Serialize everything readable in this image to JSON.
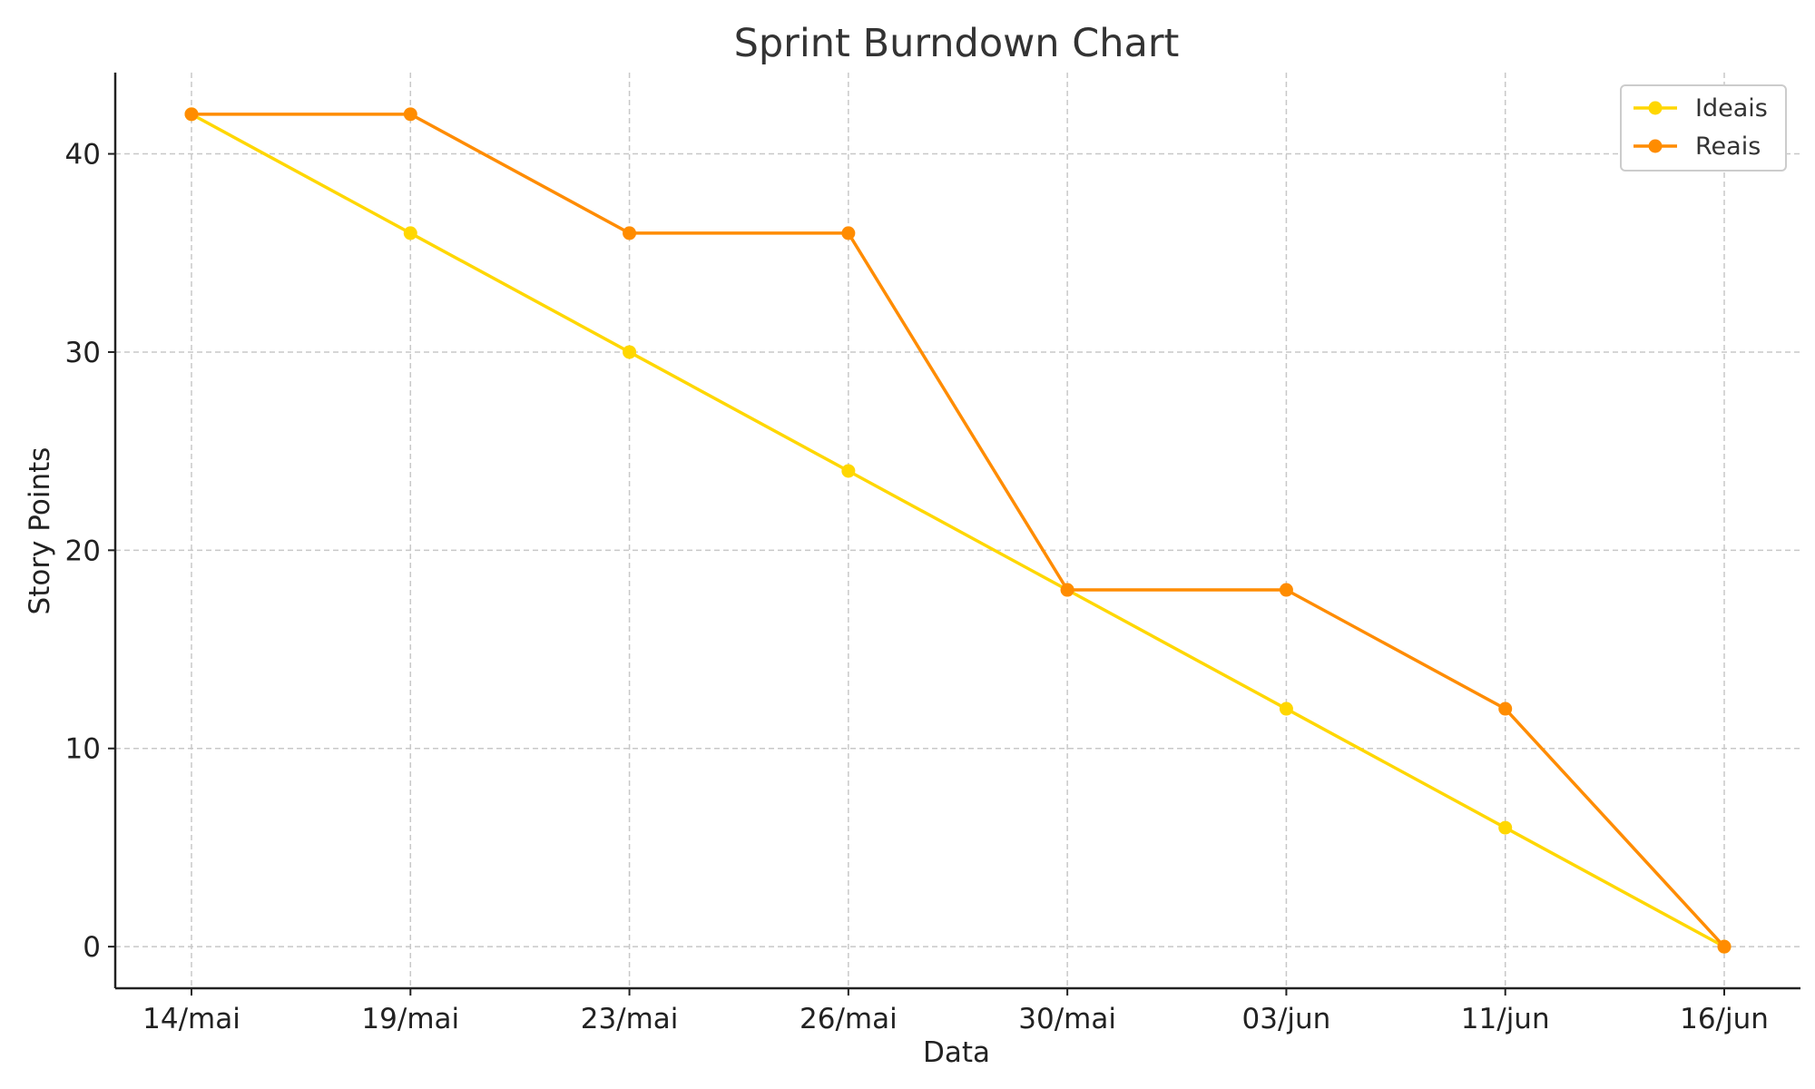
{
  "chart_data": {
    "type": "line",
    "title": "Sprint Burndown Chart",
    "xlabel": "Data",
    "ylabel": "Story Points",
    "categories": [
      "14/mai",
      "19/mai",
      "23/mai",
      "26/mai",
      "30/mai",
      "03/jun",
      "11/jun",
      "16/jun"
    ],
    "yticks": [
      0,
      10,
      20,
      30,
      40
    ],
    "ylim": [
      -2.1,
      44.1
    ],
    "grid": true,
    "legend_position": "top-right",
    "series": [
      {
        "name": "Ideais",
        "color": "#FFD700",
        "values": [
          42,
          36,
          30,
          24,
          18,
          12,
          6,
          0
        ]
      },
      {
        "name": "Reais",
        "color": "#FF8C00",
        "values": [
          42,
          42,
          36,
          36,
          18,
          18,
          12,
          0
        ]
      }
    ]
  }
}
